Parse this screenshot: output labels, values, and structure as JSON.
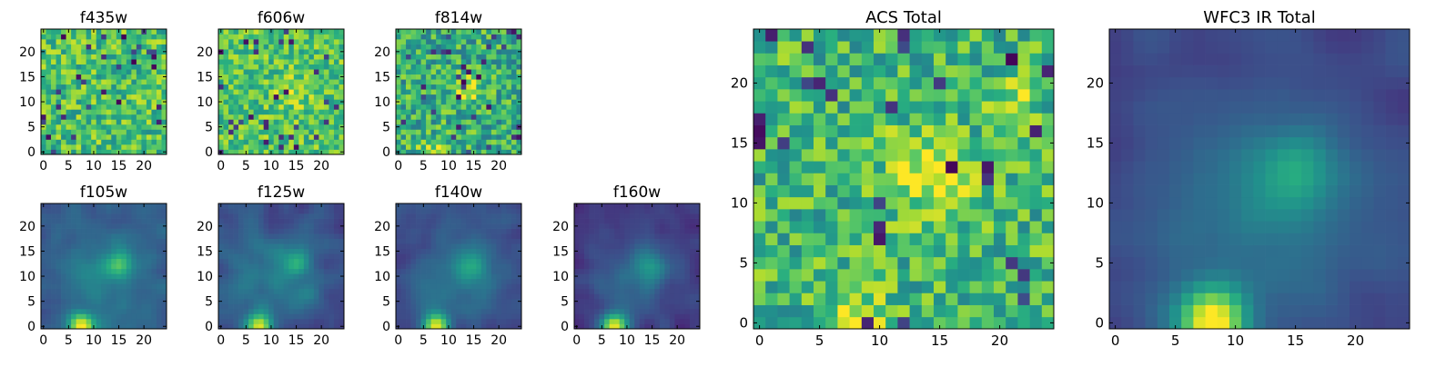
{
  "figure": {
    "colormap": "viridis",
    "colormap_stops": [
      "#440154",
      "#472c7a",
      "#3b528b",
      "#2c728e",
      "#21918c",
      "#28ae80",
      "#5ec962",
      "#addc30",
      "#fde725"
    ]
  },
  "chart_data": [
    {
      "type": "heatmap",
      "title": "f435w",
      "grid_size": 25,
      "xlim": [
        0,
        25
      ],
      "ylim": [
        0,
        25
      ],
      "x_ticks": [
        "0",
        "5",
        "10",
        "15",
        "20"
      ],
      "y_ticks": [
        "0",
        "5",
        "10",
        "15",
        "20"
      ],
      "pattern": "noise",
      "base_level": 0.7,
      "noise_amplitude": 0.22,
      "outlier_fraction": 0.05,
      "seed": 11
    },
    {
      "type": "heatmap",
      "title": "f606w",
      "grid_size": 25,
      "xlim": [
        0,
        25
      ],
      "ylim": [
        0,
        25
      ],
      "x_ticks": [
        "0",
        "5",
        "10",
        "15",
        "20"
      ],
      "y_ticks": [
        "0",
        "5",
        "10",
        "15",
        "20"
      ],
      "pattern": "noise",
      "base_level": 0.72,
      "noise_amplitude": 0.2,
      "outlier_fraction": 0.04,
      "seed": 23,
      "sources": [
        {
          "x": 14,
          "y": 12,
          "amplitude": 0.18,
          "width": 2.2
        }
      ]
    },
    {
      "type": "heatmap",
      "title": "f814w",
      "grid_size": 25,
      "xlim": [
        0,
        25
      ],
      "ylim": [
        0,
        25
      ],
      "x_ticks": [
        "0",
        "5",
        "10",
        "15",
        "20"
      ],
      "y_ticks": [
        "0",
        "5",
        "10",
        "15",
        "20"
      ],
      "pattern": "noise",
      "base_level": 0.62,
      "noise_amplitude": 0.24,
      "outlier_fraction": 0.05,
      "seed": 37,
      "sources": [
        {
          "x": 14,
          "y": 12.5,
          "amplitude": 0.32,
          "width": 2.0
        },
        {
          "x": 7,
          "y": 0,
          "amplitude": 0.3,
          "width": 2.0
        }
      ]
    },
    {
      "type": "heatmap",
      "title": "f105w",
      "grid_size": 25,
      "xlim": [
        0,
        25
      ],
      "ylim": [
        0,
        25
      ],
      "x_ticks": [
        "0",
        "5",
        "10",
        "15",
        "20"
      ],
      "y_ticks": [
        "0",
        "5",
        "10",
        "15",
        "20"
      ],
      "pattern": "smooth",
      "base_level": 0.28,
      "noise_amplitude": 0.08,
      "outlier_fraction": 0,
      "seed": 41,
      "sources": [
        {
          "x": 7.5,
          "y": 0,
          "amplitude": 0.72,
          "width": 1.8
        },
        {
          "x": 15,
          "y": 12.5,
          "amplitude": 0.32,
          "width": 1.8
        },
        {
          "x": 12,
          "y": 10,
          "amplitude": 0.18,
          "width": 6
        }
      ]
    },
    {
      "type": "heatmap",
      "title": "f125w",
      "grid_size": 25,
      "xlim": [
        0,
        25
      ],
      "ylim": [
        0,
        25
      ],
      "x_ticks": [
        "0",
        "5",
        "10",
        "15",
        "20"
      ],
      "y_ticks": [
        "0",
        "5",
        "10",
        "15",
        "20"
      ],
      "pattern": "smooth",
      "base_level": 0.26,
      "noise_amplitude": 0.09,
      "outlier_fraction": 0,
      "seed": 53,
      "sources": [
        {
          "x": 7.5,
          "y": 0,
          "amplitude": 0.72,
          "width": 1.8
        },
        {
          "x": 15,
          "y": 12.5,
          "amplitude": 0.24,
          "width": 1.8
        },
        {
          "x": 12,
          "y": 10,
          "amplitude": 0.16,
          "width": 6
        }
      ]
    },
    {
      "type": "heatmap",
      "title": "f140w",
      "grid_size": 25,
      "xlim": [
        0,
        25
      ],
      "ylim": [
        0,
        25
      ],
      "x_ticks": [
        "0",
        "5",
        "10",
        "15",
        "20"
      ],
      "y_ticks": [
        "0",
        "5",
        "10",
        "15",
        "20"
      ],
      "pattern": "smooth",
      "base_level": 0.24,
      "noise_amplitude": 0.07,
      "outlier_fraction": 0,
      "seed": 67,
      "sources": [
        {
          "x": 7.5,
          "y": 0,
          "amplitude": 0.74,
          "width": 1.8
        },
        {
          "x": 15,
          "y": 12.5,
          "amplitude": 0.22,
          "width": 2.2
        },
        {
          "x": 12,
          "y": 10,
          "amplitude": 0.16,
          "width": 6
        }
      ]
    },
    {
      "type": "heatmap",
      "title": "f160w",
      "grid_size": 25,
      "xlim": [
        0,
        25
      ],
      "ylim": [
        0,
        25
      ],
      "x_ticks": [
        "0",
        "5",
        "10",
        "15",
        "20"
      ],
      "y_ticks": [
        "0",
        "5",
        "10",
        "15",
        "20"
      ],
      "pattern": "smooth",
      "base_level": 0.16,
      "noise_amplitude": 0.07,
      "outlier_fraction": 0,
      "seed": 79,
      "sources": [
        {
          "x": 7.5,
          "y": 0,
          "amplitude": 0.82,
          "width": 1.8
        },
        {
          "x": 15,
          "y": 12.5,
          "amplitude": 0.26,
          "width": 2.2
        },
        {
          "x": 11,
          "y": 9,
          "amplitude": 0.2,
          "width": 6
        }
      ]
    },
    {
      "type": "heatmap",
      "title": "ACS Total",
      "grid_size": 25,
      "xlim": [
        0,
        25
      ],
      "ylim": [
        0,
        25
      ],
      "x_ticks": [
        "0",
        "5",
        "10",
        "15",
        "20"
      ],
      "y_ticks": [
        "0",
        "5",
        "10",
        "15",
        "20"
      ],
      "pattern": "noise",
      "base_level": 0.66,
      "noise_amplitude": 0.22,
      "outlier_fraction": 0.05,
      "seed": 97,
      "sources": [
        {
          "x": 14,
          "y": 12.5,
          "amplitude": 0.3,
          "width": 2.4
        },
        {
          "x": 8,
          "y": 0,
          "amplitude": 0.3,
          "width": 2.0
        },
        {
          "x": 21,
          "y": 18.5,
          "amplitude": 0.22,
          "width": 1.2
        }
      ]
    },
    {
      "type": "heatmap",
      "title": "WFC3 IR Total",
      "grid_size": 25,
      "xlim": [
        0,
        25
      ],
      "ylim": [
        0,
        25
      ],
      "x_ticks": [
        "0",
        "5",
        "10",
        "15",
        "20"
      ],
      "y_ticks": [
        "0",
        "5",
        "10",
        "15",
        "20"
      ],
      "pattern": "smooth",
      "base_level": 0.2,
      "noise_amplitude": 0.05,
      "outlier_fraction": 0,
      "seed": 113,
      "sources": [
        {
          "x": 8,
          "y": 0,
          "amplitude": 0.8,
          "width": 2.0
        },
        {
          "x": 15,
          "y": 12.5,
          "amplitude": 0.24,
          "width": 2.4
        },
        {
          "x": 12,
          "y": 9,
          "amplitude": 0.2,
          "width": 7
        }
      ]
    }
  ]
}
